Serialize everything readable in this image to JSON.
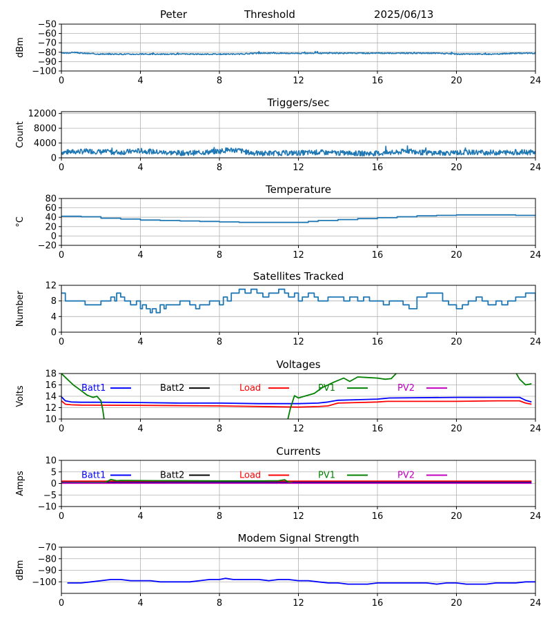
{
  "header": {
    "site": "Peter",
    "threshold": "Threshold",
    "date": "2025/06/13"
  },
  "chart_data": [
    {
      "id": "threshold",
      "type": "line",
      "title": "",
      "ylabel": "dBm",
      "xlim": [
        0,
        24
      ],
      "ylim": [
        -100,
        -50
      ],
      "yticks": [
        -100,
        -90,
        -80,
        -70,
        -60,
        -50
      ],
      "xticks": [
        0,
        4,
        8,
        12,
        16,
        20,
        24
      ],
      "grid": true,
      "series": [
        {
          "color": "#1f77b4",
          "noisy": true,
          "noise": 0.6,
          "seed": 3,
          "x": [
            0,
            0.3,
            0.6,
            1,
            2,
            3,
            4,
            5,
            6,
            7,
            8,
            9,
            10,
            11,
            12,
            13,
            14,
            15,
            16,
            17,
            18,
            19,
            20,
            21,
            22,
            23,
            24
          ],
          "y": [
            -81,
            -81,
            -80,
            -81,
            -82,
            -82,
            -82,
            -82,
            -82,
            -82,
            -82,
            -82,
            -81,
            -81,
            -81,
            -81,
            -81,
            -81,
            -81,
            -81,
            -81,
            -81,
            -82,
            -82,
            -82,
            -81,
            -81
          ]
        }
      ]
    },
    {
      "id": "triggers",
      "type": "line",
      "title": "Triggers/sec",
      "ylabel": "Count",
      "xlim": [
        0,
        24
      ],
      "ylim": [
        0,
        12500
      ],
      "yticks": [
        0,
        4000,
        8000,
        12000
      ],
      "xticks": [
        0,
        4,
        8,
        12,
        16,
        20,
        24
      ],
      "grid": true,
      "series": [
        {
          "color": "#1f77b4",
          "noisy": true,
          "noise": 700,
          "seed": 7,
          "x": [
            0,
            1,
            1.5,
            2,
            3,
            4,
            4.5,
            5,
            6,
            7,
            8,
            8.5,
            9,
            9.5,
            10,
            11,
            12,
            13,
            14,
            15,
            16,
            17,
            17.5,
            18,
            19,
            20,
            21,
            22,
            23,
            24
          ],
          "y": [
            1500,
            1700,
            1800,
            1600,
            1500,
            1900,
            1700,
            1500,
            1300,
            1400,
            1800,
            2200,
            2000,
            1400,
            1200,
            1300,
            1300,
            1500,
            1300,
            1200,
            1200,
            1400,
            2000,
            1500,
            1300,
            1400,
            1500,
            1400,
            1500,
            1500
          ]
        }
      ]
    },
    {
      "id": "temperature",
      "type": "line",
      "title": "Temperature",
      "ylabel": "°C",
      "xlim": [
        0,
        24
      ],
      "ylim": [
        -20,
        80
      ],
      "yticks": [
        -20,
        0,
        20,
        40,
        60,
        80
      ],
      "xticks": [
        0,
        4,
        8,
        12,
        16,
        20,
        24
      ],
      "grid": true,
      "series": [
        {
          "color": "#1f77b4",
          "step": true,
          "x": [
            0,
            1,
            2,
            3,
            4,
            5,
            6,
            7,
            8,
            9,
            10,
            11,
            12,
            12.5,
            13,
            14,
            15,
            16,
            17,
            18,
            19,
            20,
            21,
            22,
            23,
            24
          ],
          "y": [
            42,
            41,
            38,
            36,
            34,
            33,
            32,
            31,
            30,
            29,
            29,
            29,
            29,
            31,
            33,
            35,
            37,
            39,
            41,
            43,
            44,
            45,
            45,
            45,
            44,
            43
          ]
        }
      ]
    },
    {
      "id": "satellites",
      "type": "line",
      "title": "Satellites Tracked",
      "ylabel": "Number",
      "xlim": [
        0,
        24
      ],
      "ylim": [
        0,
        12
      ],
      "yticks": [
        0,
        4,
        8,
        12
      ],
      "xticks": [
        0,
        4,
        8,
        12,
        16,
        20,
        24
      ],
      "grid": true,
      "series": [
        {
          "color": "#1f77b4",
          "step": true,
          "x": [
            0,
            0.2,
            1,
            1.2,
            2,
            2.3,
            2.5,
            2.7,
            2.8,
            3,
            3.2,
            3.5,
            3.8,
            4,
            4.1,
            4.3,
            4.5,
            4.6,
            4.8,
            5,
            5.2,
            5.3,
            5.5,
            6,
            6.5,
            6.8,
            7,
            7.5,
            8,
            8.2,
            8.4,
            8.6,
            9,
            9.3,
            9.6,
            9.9,
            10.2,
            10.5,
            11,
            11.3,
            11.5,
            11.8,
            12,
            12.2,
            12.5,
            12.8,
            13,
            13.5,
            14,
            14.3,
            14.6,
            15,
            15.3,
            15.6,
            16,
            16.3,
            16.6,
            17,
            17.3,
            17.6,
            18,
            18.5,
            19,
            19.3,
            19.6,
            20,
            20.3,
            20.6,
            21,
            21.3,
            21.6,
            22,
            22.3,
            22.6,
            23,
            23.5,
            23.9,
            24
          ],
          "y": [
            10,
            8,
            8,
            7,
            8,
            8,
            9,
            8,
            10,
            9,
            8,
            7,
            8,
            6,
            7,
            6,
            5,
            6,
            5,
            7,
            6,
            7,
            7,
            8,
            7,
            6,
            7,
            8,
            7,
            9,
            8,
            10,
            11,
            10,
            11,
            10,
            9,
            10,
            11,
            10,
            9,
            10,
            8,
            9,
            10,
            9,
            8,
            9,
            9,
            8,
            9,
            8,
            9,
            8,
            8,
            7,
            8,
            8,
            7,
            6,
            9,
            10,
            10,
            8,
            7,
            6,
            7,
            8,
            9,
            8,
            7,
            8,
            7,
            8,
            9,
            10,
            10,
            8
          ]
        }
      ]
    },
    {
      "id": "voltages",
      "type": "line",
      "title": "Voltages",
      "ylabel": "Volts",
      "xlim": [
        0,
        24
      ],
      "ylim": [
        10,
        18
      ],
      "yticks": [
        10,
        12,
        14,
        16,
        18
      ],
      "xticks": [
        0,
        4,
        8,
        12,
        16,
        20,
        24
      ],
      "grid": true,
      "legend": "top",
      "series": [
        {
          "name": "Batt1",
          "color": "#0000ff",
          "x": [
            0,
            0.2,
            0.5,
            1,
            2,
            4,
            6,
            8,
            10,
            12,
            13,
            13.5,
            14,
            15,
            16,
            16.3,
            16.6,
            20,
            23.2,
            23.5,
            23.8
          ],
          "y": [
            13.9,
            13.2,
            13.0,
            12.95,
            12.95,
            12.9,
            12.8,
            12.8,
            12.7,
            12.7,
            12.8,
            13.0,
            13.3,
            13.4,
            13.5,
            13.6,
            13.7,
            13.8,
            13.8,
            13.3,
            13.0
          ]
        },
        {
          "name": "Batt2",
          "color": "#000000",
          "x": [],
          "y": []
        },
        {
          "name": "Load",
          "color": "#ff0000",
          "x": [
            0,
            0.2,
            0.5,
            1,
            4,
            8,
            12,
            13,
            13.5,
            14,
            15,
            16,
            16.5,
            18,
            20,
            22,
            23.2,
            23.5,
            23.8
          ],
          "y": [
            13.2,
            12.6,
            12.5,
            12.45,
            12.4,
            12.3,
            12.1,
            12.2,
            12.3,
            12.8,
            12.9,
            13.0,
            13.1,
            13.1,
            13.1,
            13.2,
            13.2,
            12.8,
            12.6
          ]
        },
        {
          "name": "PV1",
          "color": "#008000",
          "x": [
            0,
            0.3,
            0.6,
            1,
            1.3,
            1.6,
            1.8,
            2.0,
            2.1,
            2.2
          ],
          "y": [
            18,
            17,
            16,
            15,
            14.2,
            13.8,
            14.0,
            13.2,
            11.5,
            9
          ],
          "x2": [
            11.4,
            11.6,
            11.8,
            12,
            12.3,
            12.8,
            13.2,
            13.8,
            14.3,
            14.6,
            15,
            15.5,
            16,
            16.4,
            16.7,
            17.0
          ],
          "y2": [
            9,
            12,
            14.1,
            13.7,
            14.0,
            14.5,
            15.5,
            16.5,
            17.2,
            16.6,
            17.4,
            17.3,
            17.2,
            17.0,
            17.1,
            18.2
          ],
          "x3": [
            23.0,
            23.2,
            23.5,
            23.8
          ],
          "y3": [
            18.2,
            17.0,
            16.0,
            16.2
          ]
        },
        {
          "name": "PV2",
          "color": "#bf00bf",
          "x": [],
          "y": []
        }
      ]
    },
    {
      "id": "currents",
      "type": "line",
      "title": "Currents",
      "ylabel": "Amps",
      "xlim": [
        0,
        24
      ],
      "ylim": [
        -10,
        10
      ],
      "yticks": [
        -10,
        -5,
        0,
        5,
        10
      ],
      "xticks": [
        0,
        4,
        8,
        12,
        16,
        20,
        24
      ],
      "grid": true,
      "legend": "top",
      "series": [
        {
          "name": "Batt1",
          "color": "#0000ff",
          "x": [
            0,
            23.8
          ],
          "y": [
            0.6,
            0.6
          ]
        },
        {
          "name": "Batt2",
          "color": "#000000",
          "x": [
            0,
            23.8
          ],
          "y": [
            0.3,
            0.3
          ]
        },
        {
          "name": "Load",
          "color": "#ff0000",
          "x": [
            0,
            23.8
          ],
          "y": [
            1.0,
            1.0
          ]
        },
        {
          "name": "PV1",
          "color": "#008000",
          "x": [
            0,
            2.2,
            2.5,
            2.8,
            3,
            5,
            8,
            10,
            11,
            11.3,
            11.5,
            11.7
          ],
          "y": [
            0.3,
            0.4,
            1.7,
            1.2,
            1.3,
            1.2,
            1.1,
            1.1,
            1.2,
            1.6,
            0.6,
            0.3
          ]
        },
        {
          "name": "PV2",
          "color": "#bf00bf",
          "x": [
            0,
            23.8
          ],
          "y": [
            0.1,
            0.1
          ]
        }
      ]
    },
    {
      "id": "modem",
      "type": "line",
      "title": "Modem Signal Strength",
      "ylabel": "dBm",
      "xlim": [
        0,
        24
      ],
      "ylim": [
        -110,
        -70
      ],
      "yticks": [
        -100,
        -90,
        -80,
        -70
      ],
      "xticks": [
        0,
        4,
        8,
        12,
        16,
        20,
        24
      ],
      "grid": true,
      "series": [
        {
          "color": "#0000ff",
          "x": [
            0.3,
            1,
            1.5,
            2,
            2.5,
            3,
            3.5,
            4,
            4.5,
            5,
            5.5,
            6,
            6.5,
            7,
            7.5,
            8,
            8.3,
            8.7,
            9,
            9.5,
            10,
            10.5,
            11,
            11.5,
            12,
            12.5,
            13,
            13.5,
            14,
            14.5,
            15,
            15.5,
            16,
            16.5,
            17,
            17.5,
            18,
            18.5,
            19,
            19.5,
            20,
            20.5,
            21,
            21.5,
            22,
            22.5,
            23,
            23.5,
            24
          ],
          "y": [
            -101,
            -101,
            -100,
            -99,
            -98,
            -98,
            -99,
            -99,
            -99,
            -100,
            -100,
            -100,
            -100,
            -99,
            -98,
            -98,
            -97,
            -98,
            -98,
            -98,
            -98,
            -99,
            -98,
            -98,
            -99,
            -99,
            -100,
            -101,
            -101,
            -102,
            -102,
            -102,
            -101,
            -101,
            -101,
            -101,
            -101,
            -101,
            -102,
            -101,
            -101,
            -102,
            -102,
            -102,
            -101,
            -101,
            -101,
            -100,
            -100
          ]
        }
      ]
    }
  ]
}
